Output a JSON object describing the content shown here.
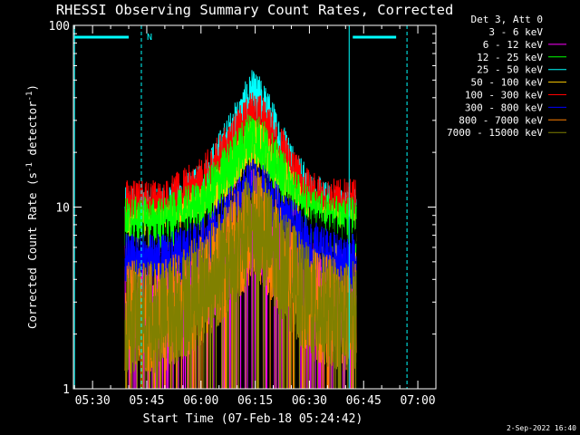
{
  "chart_data": {
    "type": "line",
    "title": "RHESSI Observing Summary Count Rates, Corrected",
    "xlabel": "Start Time (07-Feb-18 05:24:42)",
    "ylabel": "Corrected Count Rate (s⁻¹ detector⁻¹)",
    "ylabel_parts": {
      "main": "Corrected Count Rate (s",
      "exp1": "-1",
      "mid": " detector",
      "exp2": "-1",
      "end": ")"
    },
    "x_scale": "time",
    "xlim": [
      "05:24:42",
      "07:05:00"
    ],
    "x_ticks": [
      "05:30",
      "05:45",
      "06:00",
      "06:15",
      "06:30",
      "06:45",
      "07:00"
    ],
    "y_scale": "log",
    "ylim": [
      1,
      100
    ],
    "y_ticks": [
      "1",
      "10",
      "100"
    ],
    "grid": false,
    "legend_position": "top-right outside",
    "legend_header": "Det 3, Att 0",
    "series": [
      {
        "name": "3 - 6 keV",
        "color": "#000000",
        "x": [
          "05:39",
          "05:50",
          "06:00",
          "06:10",
          "06:13",
          "06:16",
          "06:22",
          "06:30",
          "06:38",
          "06:43"
        ],
        "y": [
          5.5,
          6,
          6.5,
          10,
          13,
          12,
          9,
          7,
          6.5,
          6
        ]
      },
      {
        "name": "6 - 12 keV",
        "color": "#ff00ff",
        "x": [
          "05:39",
          "05:50",
          "06:00",
          "06:10",
          "06:14",
          "06:16",
          "06:22",
          "06:30",
          "06:38",
          "06:43"
        ],
        "y": [
          3,
          3,
          4,
          7,
          8,
          8,
          6,
          4,
          3,
          3
        ]
      },
      {
        "name": "12 - 25 keV",
        "color": "#00ff00",
        "x": [
          "05:39",
          "05:50",
          "06:00",
          "06:10",
          "06:14",
          "06:17",
          "06:22",
          "06:30",
          "06:38",
          "06:43"
        ],
        "y": [
          8,
          8,
          10,
          19,
          25,
          22,
          15,
          9,
          8,
          8
        ]
      },
      {
        "name": "25 - 50 keV",
        "color": "#00ffff",
        "x": [
          "05:39",
          "05:50",
          "06:00",
          "06:10",
          "06:14",
          "06:17",
          "06:22",
          "06:30",
          "06:38",
          "06:43"
        ],
        "y": [
          9,
          9,
          12,
          28,
          40,
          36,
          22,
          11,
          9,
          9
        ]
      },
      {
        "name": "50 - 100 keV",
        "color": "#ffcc00",
        "x": [
          "05:39",
          "05:50",
          "06:00",
          "06:10",
          "06:14",
          "06:17",
          "06:22",
          "06:30",
          "06:38",
          "06:43"
        ],
        "y": [
          7,
          7,
          9,
          16,
          22,
          20,
          14,
          8,
          7,
          7
        ]
      },
      {
        "name": "100 - 300 keV",
        "color": "#ff0000",
        "x": [
          "05:39",
          "05:50",
          "06:00",
          "06:10",
          "06:14",
          "06:17",
          "06:22",
          "06:30",
          "06:38",
          "06:43"
        ],
        "y": [
          10,
          10,
          13,
          24,
          31,
          29,
          20,
          11,
          10,
          10
        ]
      },
      {
        "name": "300 - 800 keV",
        "color": "#0000ff",
        "x": [
          "05:39",
          "05:50",
          "06:00",
          "06:10",
          "06:14",
          "06:17",
          "06:22",
          "06:30",
          "06:38",
          "06:43"
        ],
        "y": [
          5,
          5,
          6,
          10,
          13,
          12,
          9,
          6,
          5,
          5
        ]
      },
      {
        "name": "800 - 7000 keV",
        "color": "#ff8000",
        "x": [
          "05:39",
          "05:50",
          "06:00",
          "06:10",
          "06:14",
          "06:17",
          "06:22",
          "06:30",
          "06:38",
          "06:43"
        ],
        "y": [
          2.5,
          2.5,
          3.5,
          6,
          8,
          7.5,
          5,
          3,
          2.5,
          2.5
        ]
      },
      {
        "name": "7000 - 15000 keV",
        "color": "#808000",
        "x": [
          "05:39",
          "05:50",
          "06:00",
          "06:10",
          "06:14",
          "06:17",
          "06:22",
          "06:30",
          "06:38",
          "06:43"
        ],
        "y": [
          2.5,
          2.5,
          3.5,
          6,
          8,
          7.5,
          5,
          3,
          2.5,
          2.5
        ]
      }
    ],
    "annotations": [
      {
        "text": "N",
        "color": "#00ffff"
      }
    ],
    "overlay_color": "#00ffff"
  },
  "footer_date": "2-Sep-2022 16:40"
}
